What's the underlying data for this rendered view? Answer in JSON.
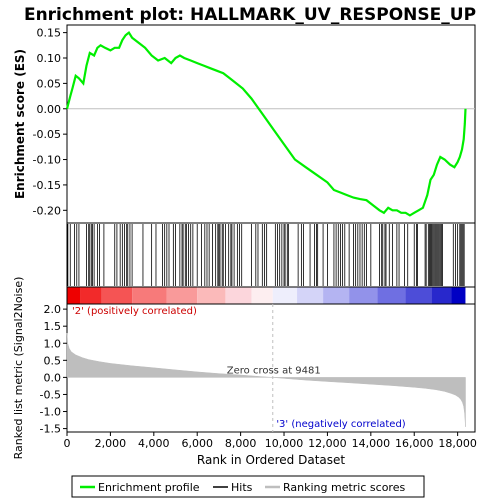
{
  "chart_data": {
    "type": "line",
    "title": "Enrichment plot: HALLMARK_UV_RESPONSE_UP",
    "colors": {
      "enrichment": "#00ee00",
      "hits": "#000000",
      "ranking_fill": "#bebebe",
      "zero_line": "#bfbfbf",
      "axis": "#000000",
      "pos_label": "#cc0000",
      "neg_label": "#0000cc"
    },
    "x_axis": {
      "label": "Rank in Ordered Dataset",
      "range": [
        0,
        18800
      ],
      "ticks": [
        0,
        2000,
        4000,
        6000,
        8000,
        10000,
        12000,
        14000,
        16000,
        18000
      ],
      "tick_labels": [
        "0",
        "2,000",
        "4,000",
        "6,000",
        "8,000",
        "10,000",
        "12,000",
        "14,000",
        "16,000",
        "18,000"
      ]
    },
    "enrichment_panel": {
      "ylabel": "Enrichment score (ES)",
      "ylim": [
        -0.225,
        0.165
      ],
      "ticks": [
        -0.2,
        -0.15,
        -0.1,
        -0.05,
        0.0,
        0.05,
        0.1,
        0.15
      ],
      "tick_labels": [
        "-0.20",
        "-0.15",
        "-0.10",
        "-0.05",
        "0.00",
        "0.05",
        "0.10",
        "0.15"
      ],
      "series": [
        {
          "name": "Enrichment profile",
          "x": [
            0,
            150,
            250,
            400,
            550,
            750,
            900,
            1050,
            1250,
            1400,
            1550,
            1750,
            2000,
            2200,
            2400,
            2550,
            2700,
            2850,
            3000,
            3300,
            3600,
            3900,
            4200,
            4500,
            4800,
            5000,
            5200,
            5400,
            5700,
            6000,
            6300,
            6600,
            6900,
            7200,
            7500,
            7800,
            8100,
            8500,
            9000,
            9500,
            10000,
            10500,
            11000,
            11500,
            12000,
            12300,
            12600,
            12900,
            13200,
            13500,
            13800,
            14100,
            14400,
            14600,
            14800,
            15000,
            15200,
            15400,
            15600,
            15800,
            16000,
            16200,
            16400,
            16600,
            16750,
            16900,
            17050,
            17200,
            17400,
            17650,
            17850,
            18000,
            18100,
            18200,
            18280,
            18330,
            18360
          ],
          "y": [
            0.0,
            0.025,
            0.04,
            0.065,
            0.06,
            0.05,
            0.085,
            0.11,
            0.105,
            0.12,
            0.125,
            0.12,
            0.115,
            0.12,
            0.12,
            0.135,
            0.145,
            0.15,
            0.14,
            0.13,
            0.12,
            0.105,
            0.095,
            0.1,
            0.09,
            0.1,
            0.105,
            0.1,
            0.095,
            0.09,
            0.085,
            0.08,
            0.075,
            0.07,
            0.06,
            0.05,
            0.04,
            0.02,
            -0.01,
            -0.04,
            -0.07,
            -0.1,
            -0.115,
            -0.13,
            -0.145,
            -0.16,
            -0.165,
            -0.17,
            -0.175,
            -0.178,
            -0.18,
            -0.19,
            -0.2,
            -0.205,
            -0.195,
            -0.2,
            -0.2,
            -0.205,
            -0.205,
            -0.21,
            -0.205,
            -0.2,
            -0.195,
            -0.17,
            -0.14,
            -0.13,
            -0.11,
            -0.095,
            -0.1,
            -0.11,
            -0.115,
            -0.105,
            -0.095,
            -0.08,
            -0.06,
            -0.03,
            0.0
          ]
        }
      ]
    },
    "hits_panel": {
      "hit_ranks": [
        40,
        150,
        350,
        450,
        550,
        900,
        1000,
        1050,
        1120,
        1180,
        1250,
        1400,
        1500,
        1700,
        2200,
        2300,
        2450,
        2550,
        2650,
        2750,
        2800,
        2900,
        3000,
        3500,
        3900,
        4100,
        4400,
        4500,
        4600,
        4700,
        4900,
        5000,
        5200,
        5300,
        5350,
        5450,
        5500,
        5600,
        5700,
        5800,
        6000,
        6200,
        6350,
        6450,
        6550,
        6700,
        6850,
        6950,
        7000,
        7050,
        7150,
        7200,
        7300,
        7450,
        7550,
        7600,
        7700,
        7850,
        7950,
        8050,
        8500,
        8700,
        8800,
        9000,
        9100,
        9200,
        9600,
        9700,
        9800,
        9900,
        10000,
        10050,
        10150,
        10200,
        10650,
        10800,
        10900,
        11200,
        11400,
        11500,
        11550,
        11800,
        12000,
        12300,
        12400,
        12500,
        12600,
        12700,
        12800,
        13000,
        13200,
        13300,
        13400,
        13500,
        13600,
        13700,
        13800,
        14000,
        14400,
        14500,
        14550,
        14650,
        14700,
        14850,
        15000,
        15200,
        15300,
        15550,
        15700,
        16000,
        16100,
        16150,
        16500,
        16550,
        16650,
        16700,
        16750,
        16800,
        16850,
        16900,
        16950,
        17000,
        17050,
        17100,
        17150,
        17200,
        17250,
        17300,
        17800,
        17900,
        18000,
        18100,
        18150,
        18200,
        18250,
        18300
      ]
    },
    "heatmap_bar": {
      "segments": [
        {
          "x0": 0,
          "x1": 600,
          "color": "#ee0000"
        },
        {
          "x0": 600,
          "x1": 1600,
          "color": "#f22a2a"
        },
        {
          "x0": 1600,
          "x1": 3000,
          "color": "#f55454"
        },
        {
          "x0": 3000,
          "x1": 4600,
          "color": "#f77a7a"
        },
        {
          "x0": 4600,
          "x1": 6000,
          "color": "#f99a9a"
        },
        {
          "x0": 6000,
          "x1": 7300,
          "color": "#fbbaba"
        },
        {
          "x0": 7300,
          "x1": 8500,
          "color": "#fcd6dc"
        },
        {
          "x0": 8500,
          "x1": 9481,
          "color": "#fdeef0"
        },
        {
          "x0": 9481,
          "x1": 10600,
          "color": "#eeeefc"
        },
        {
          "x0": 10600,
          "x1": 11800,
          "color": "#d4d4f8"
        },
        {
          "x0": 11800,
          "x1": 13000,
          "color": "#b4b4f2"
        },
        {
          "x0": 13000,
          "x1": 14300,
          "color": "#9292ea"
        },
        {
          "x0": 14300,
          "x1": 15600,
          "color": "#6f6fe2"
        },
        {
          "x0": 15600,
          "x1": 16800,
          "color": "#4d4dd8"
        },
        {
          "x0": 16800,
          "x1": 17700,
          "color": "#2828cc"
        },
        {
          "x0": 17700,
          "x1": 18360,
          "color": "#0000c4"
        }
      ]
    },
    "ranking_panel": {
      "ylabel": "Ranked list metric (Signal2Noise)",
      "ylim": [
        -1.6,
        2.15
      ],
      "ticks": [
        -1.5,
        -1.0,
        -0.5,
        0.0,
        0.5,
        1.0,
        1.5,
        2.0
      ],
      "tick_labels": [
        "-1.5",
        "-1.0",
        "-0.5",
        "0.0",
        "0.5",
        "1.0",
        "1.5",
        "2.0"
      ],
      "x": [
        0,
        30,
        100,
        200,
        400,
        700,
        1000,
        1500,
        2000,
        3000,
        4000,
        5000,
        6000,
        7000,
        8000,
        9000,
        9481,
        10000,
        11000,
        12000,
        13000,
        14000,
        15000,
        16000,
        16500,
        17000,
        17400,
        17700,
        17900,
        18050,
        18150,
        18220,
        18280,
        18320,
        18360
      ],
      "values": [
        1.3,
        1.0,
        0.85,
        0.75,
        0.66,
        0.58,
        0.52,
        0.46,
        0.41,
        0.34,
        0.28,
        0.22,
        0.16,
        0.11,
        0.07,
        0.02,
        0.0,
        -0.03,
        -0.08,
        -0.12,
        -0.16,
        -0.2,
        -0.24,
        -0.29,
        -0.32,
        -0.36,
        -0.41,
        -0.47,
        -0.52,
        -0.58,
        -0.65,
        -0.73,
        -0.85,
        -1.05,
        -1.45
      ],
      "zero_cross_label": "Zero cross at 9481",
      "zero_cross_rank": 9481,
      "pos_label": "'2' (positively correlated)",
      "neg_label": "'3' (negatively correlated)"
    },
    "legend": {
      "position": "bottom",
      "entries": [
        {
          "label": "Enrichment profile",
          "kind": "enrichment"
        },
        {
          "label": "Hits",
          "kind": "hits"
        },
        {
          "label": "Ranking metric scores",
          "kind": "ranking"
        }
      ]
    }
  }
}
